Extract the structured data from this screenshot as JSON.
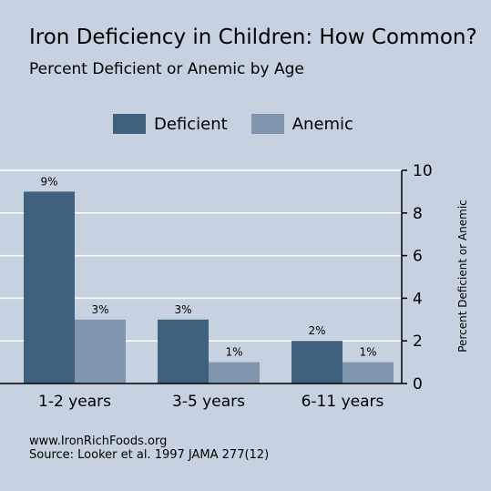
{
  "title": "Iron Deficiency in Children: How Common?",
  "subtitle": "Percent Deficient or Anemic by Age",
  "footer": {
    "line1": "www.IronRichFoods.org",
    "line2": "Source: Looker et al. 1997 JAMA 277(12)"
  },
  "colors": {
    "background": "#c6d2e0",
    "deficient": "#3f617e",
    "anemic": "#7f96ae"
  },
  "chart_data": {
    "type": "bar",
    "categories": [
      "1-2 years",
      "3-5 years",
      "6-11 years"
    ],
    "series": [
      {
        "name": "Deficient",
        "values": [
          9,
          3,
          2
        ],
        "labels": [
          "9%",
          "3%",
          "2%"
        ]
      },
      {
        "name": "Anemic",
        "values": [
          3,
          1,
          1
        ],
        "labels": [
          "3%",
          "1%",
          "1%"
        ]
      }
    ],
    "ylabel": "Percent Deficient or Anemic",
    "ylim": [
      0,
      10
    ],
    "yticks": [
      0,
      2,
      4,
      6,
      8,
      10
    ],
    "y_axis_side": "right",
    "grid": true,
    "legend_position": "top"
  }
}
